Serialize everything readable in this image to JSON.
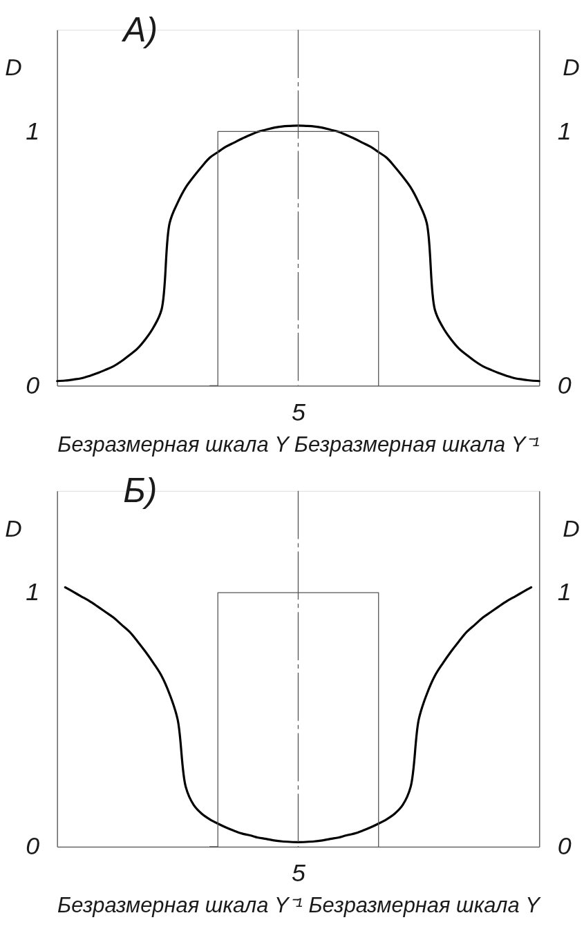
{
  "chart_data": [
    {
      "type": "line",
      "title": "А)",
      "xlabel": "Безразмерная шкала Y Безразмерная шкала Y⁻¹",
      "ylabel": "D",
      "y2label": "D",
      "categories": [
        null,
        null,
        null,
        null,
        null,
        null,
        null,
        null,
        null,
        null,
        null,
        null,
        null,
        null,
        null,
        null,
        null,
        null,
        null,
        null,
        null,
        null,
        null,
        null,
        null,
        null,
        null,
        null,
        null,
        null,
        "5",
        null,
        null,
        null,
        null,
        null,
        null,
        null,
        null,
        null,
        null,
        null,
        null,
        null,
        null,
        null,
        null,
        null,
        null,
        null,
        null,
        null,
        null,
        null,
        null,
        null,
        null,
        null,
        null,
        null,
        null
      ],
      "ylim": [
        0,
        1.4
      ],
      "yticks": [
        0,
        1
      ],
      "y2lim": [
        0,
        1.4
      ],
      "y2ticks": [
        0,
        1
      ],
      "series": [
        {
          "color": "#000000",
          "values": [
            0.018,
            0.02,
            0.024,
            0.029,
            0.038,
            0.049,
            0.062,
            0.076,
            0.096,
            0.12,
            0.146,
            0.183,
            0.23,
            0.3,
            0.64,
            0.72,
            0.78,
            0.823,
            0.862,
            0.897,
            0.919,
            0.94,
            0.956,
            0.972,
            0.986,
            0.999,
            1.007,
            1.015,
            1.02,
            1.022,
            1.023,
            1.022,
            1.02,
            1.015,
            1.007,
            0.999,
            0.986,
            0.972,
            0.956,
            0.94,
            0.919,
            0.897,
            0.862,
            0.823,
            0.78,
            0.72,
            0.64,
            0.3,
            0.23,
            0.183,
            0.146,
            0.12,
            0.096,
            0.076,
            0.062,
            0.049,
            0.038,
            0.029,
            0.024,
            0.02,
            0.018
          ]
        },
        {
          "type": "step",
          "color": "#555555",
          "values": [
            null,
            null,
            null,
            null,
            null,
            null,
            null,
            null,
            null,
            null,
            null,
            null,
            null,
            null,
            null,
            null,
            null,
            null,
            null,
            0,
            1,
            1,
            1,
            1,
            1,
            1,
            1,
            1,
            1,
            1,
            1,
            1,
            1,
            1,
            1,
            1,
            1,
            1,
            1,
            1,
            0,
            null,
            null,
            null,
            null,
            null,
            null,
            null,
            null,
            null,
            null,
            null,
            null,
            null,
            null,
            null,
            null,
            null,
            null,
            null,
            null
          ]
        }
      ],
      "ref_lines": [
        {
          "axis": "x",
          "value": "5",
          "color": "#555555",
          "line_style": "dashed"
        }
      ]
    },
    {
      "type": "line",
      "title": "Б)",
      "xlabel": "Безразмерная шкала Y⁻¹ Безразмерная шкала Y",
      "ylabel": "D",
      "y2label": "D",
      "categories": [
        null,
        null,
        null,
        null,
        null,
        null,
        null,
        null,
        null,
        null,
        null,
        null,
        null,
        null,
        null,
        null,
        null,
        null,
        null,
        null,
        null,
        null,
        null,
        null,
        null,
        null,
        null,
        null,
        null,
        null,
        "5",
        null,
        null,
        null,
        null,
        null,
        null,
        null,
        null,
        null,
        null,
        null,
        null,
        null,
        null,
        null,
        null,
        null,
        null,
        null,
        null,
        null,
        null,
        null,
        null,
        null,
        null,
        null,
        null,
        null,
        null
      ],
      "ylim": [
        0,
        1.4
      ],
      "yticks": [
        0,
        1
      ],
      "y2lim": [
        0,
        1.4
      ],
      "y2ticks": [
        0,
        1
      ],
      "series": [
        {
          "color": "#000000",
          "values": [
            null,
            1.021,
            1.003,
            0.985,
            0.967,
            0.946,
            0.924,
            0.902,
            0.874,
            0.846,
            0.808,
            0.767,
            0.722,
            0.672,
            0.6,
            0.5,
            0.236,
            0.164,
            0.13,
            0.108,
            0.091,
            0.076,
            0.063,
            0.052,
            0.045,
            0.036,
            0.031,
            0.025,
            0.021,
            0.019,
            0.018,
            0.019,
            0.021,
            0.025,
            0.031,
            0.036,
            0.045,
            0.052,
            0.063,
            0.076,
            0.091,
            0.108,
            0.13,
            0.164,
            0.236,
            0.5,
            0.6,
            0.672,
            0.722,
            0.767,
            0.808,
            0.846,
            0.874,
            0.902,
            0.924,
            0.946,
            0.967,
            0.985,
            1.003,
            1.021,
            null
          ]
        },
        {
          "type": "step",
          "color": "#555555",
          "values": [
            null,
            null,
            null,
            null,
            null,
            null,
            null,
            null,
            null,
            null,
            null,
            null,
            null,
            null,
            null,
            null,
            null,
            null,
            null,
            0,
            1,
            1,
            1,
            1,
            1,
            1,
            1,
            1,
            1,
            1,
            1,
            1,
            1,
            1,
            1,
            1,
            1,
            1,
            1,
            1,
            0,
            null,
            null,
            null,
            null,
            null,
            null,
            null,
            null,
            null,
            null,
            null,
            null,
            null,
            null,
            null,
            null,
            null,
            null,
            null,
            null
          ]
        }
      ],
      "ref_lines": [
        {
          "axis": "x",
          "value": "5",
          "color": "#555555",
          "line_style": "dashed"
        }
      ]
    }
  ]
}
